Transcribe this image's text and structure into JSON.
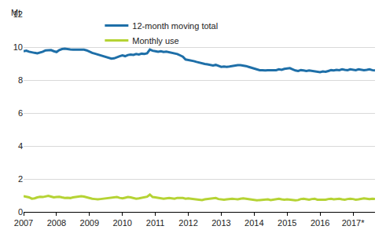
{
  "chart_data": {
    "type": "line",
    "y_label": "Mt",
    "categories": [
      "2007",
      null,
      null,
      null,
      null,
      null,
      null,
      null,
      null,
      null,
      null,
      null,
      "2008",
      null,
      null,
      null,
      null,
      null,
      null,
      null,
      null,
      null,
      null,
      null,
      "2009",
      null,
      null,
      null,
      null,
      null,
      null,
      null,
      null,
      null,
      null,
      null,
      "2010",
      null,
      null,
      null,
      null,
      null,
      null,
      null,
      null,
      null,
      null,
      null,
      "2011",
      null,
      null,
      null,
      null,
      null,
      null,
      null,
      null,
      null,
      null,
      null,
      "2012",
      null,
      null,
      null,
      null,
      null,
      null,
      null,
      null,
      null,
      null,
      null,
      "2013",
      null,
      null,
      null,
      null,
      null,
      null,
      null,
      null,
      null,
      null,
      null,
      "2014",
      null,
      null,
      null,
      null,
      null,
      null,
      null,
      null,
      null,
      null,
      null,
      "2015",
      null,
      null,
      null,
      null,
      null,
      null,
      null,
      null,
      null,
      null,
      null,
      "2016",
      null,
      null,
      null,
      null,
      null,
      null,
      null,
      null,
      null,
      null,
      null,
      "2017*",
      null,
      null,
      null,
      null,
      null,
      null,
      null,
      null
    ],
    "series": [
      {
        "name": "12-month moving total",
        "color": "#1e6fa8",
        "values": [
          9.75,
          9.78,
          9.72,
          9.7,
          9.65,
          9.62,
          9.66,
          9.72,
          9.8,
          9.8,
          9.82,
          9.75,
          9.7,
          9.82,
          9.88,
          9.9,
          9.87,
          9.86,
          9.85,
          9.85,
          9.86,
          9.85,
          9.84,
          9.8,
          9.72,
          9.65,
          9.6,
          9.55,
          9.48,
          9.42,
          9.38,
          9.33,
          9.3,
          9.32,
          9.4,
          9.45,
          9.5,
          9.45,
          9.52,
          9.55,
          9.53,
          9.58,
          9.55,
          9.6,
          9.58,
          9.62,
          9.85,
          9.78,
          9.75,
          9.72,
          9.75,
          9.7,
          9.72,
          9.68,
          9.65,
          9.62,
          9.58,
          9.5,
          9.42,
          9.25,
          9.22,
          9.2,
          9.15,
          9.1,
          9.05,
          9.02,
          8.98,
          8.95,
          8.9,
          8.88,
          8.92,
          8.86,
          8.8,
          8.82,
          8.8,
          8.82,
          8.85,
          8.88,
          8.9,
          8.9,
          8.88,
          8.85,
          8.8,
          8.75,
          8.7,
          8.62,
          8.6,
          8.6,
          8.58,
          8.6,
          8.6,
          8.62,
          8.6,
          8.65,
          8.62,
          8.68,
          8.7,
          8.72,
          8.65,
          8.58,
          8.55,
          8.6,
          8.58,
          8.55,
          8.58,
          8.55,
          8.52,
          8.5,
          8.48,
          8.52,
          8.5,
          8.55,
          8.6,
          8.58,
          8.62,
          8.6,
          8.65,
          8.62,
          8.6,
          8.65,
          8.62,
          8.6,
          8.65,
          8.62,
          8.6,
          8.62,
          8.65,
          8.6,
          8.58
        ]
      },
      {
        "name": "Monthly use",
        "color": "#b5d334",
        "values": [
          0.95,
          0.92,
          0.88,
          0.8,
          0.82,
          0.88,
          0.92,
          0.9,
          0.95,
          0.97,
          0.93,
          0.88,
          0.9,
          0.92,
          0.88,
          0.85,
          0.86,
          0.84,
          0.88,
          0.9,
          0.92,
          0.95,
          0.93,
          0.88,
          0.85,
          0.8,
          0.78,
          0.76,
          0.78,
          0.8,
          0.82,
          0.84,
          0.86,
          0.88,
          0.9,
          0.85,
          0.82,
          0.86,
          0.9,
          0.88,
          0.85,
          0.8,
          0.82,
          0.86,
          0.9,
          0.92,
          1.05,
          0.9,
          0.88,
          0.85,
          0.82,
          0.8,
          0.82,
          0.84,
          0.82,
          0.8,
          0.85,
          0.86,
          0.84,
          0.8,
          0.82,
          0.8,
          0.78,
          0.76,
          0.74,
          0.72,
          0.76,
          0.78,
          0.8,
          0.82,
          0.84,
          0.78,
          0.76,
          0.74,
          0.76,
          0.78,
          0.8,
          0.78,
          0.76,
          0.8,
          0.82,
          0.8,
          0.78,
          0.76,
          0.72,
          0.7,
          0.72,
          0.74,
          0.76,
          0.76,
          0.72,
          0.74,
          0.78,
          0.8,
          0.76,
          0.74,
          0.76,
          0.74,
          0.72,
          0.7,
          0.72,
          0.78,
          0.8,
          0.76,
          0.74,
          0.78,
          0.8,
          0.74,
          0.74,
          0.76,
          0.74,
          0.78,
          0.8,
          0.76,
          0.78,
          0.8,
          0.76,
          0.74,
          0.78,
          0.8,
          0.78,
          0.74,
          0.76,
          0.8,
          0.82,
          0.8,
          0.78,
          0.8,
          0.78
        ]
      }
    ],
    "ylim": [
      0,
      12
    ],
    "yticks": [
      0,
      2,
      4,
      6,
      8,
      10,
      12
    ],
    "grid": true,
    "legend": "upper center"
  }
}
